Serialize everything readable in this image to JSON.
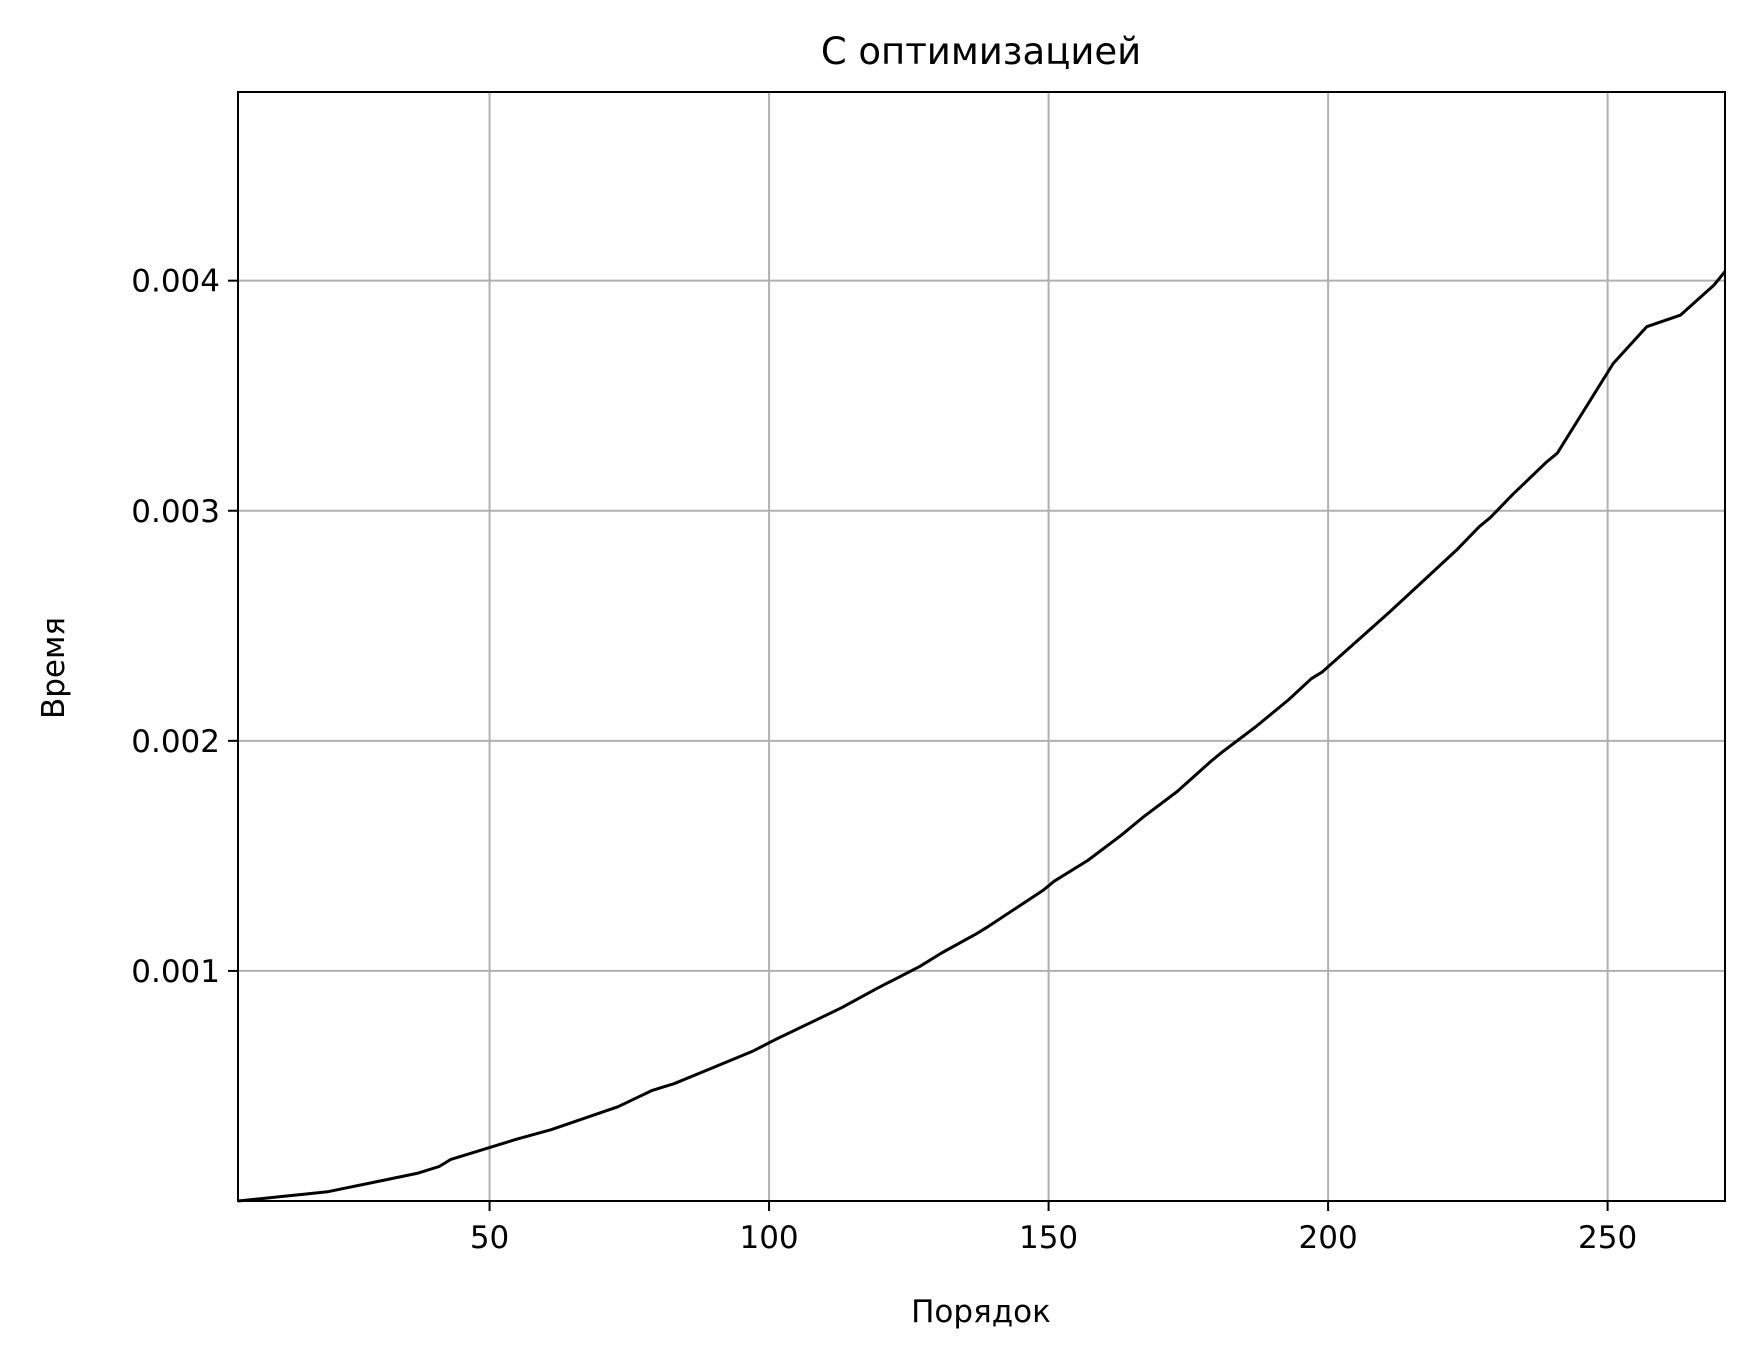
{
  "chart_data": {
    "type": "line",
    "title": "С оптимизацией",
    "xlabel": "Порядок",
    "ylabel": "Время",
    "xlim": [
      5,
      271
    ],
    "ylim": [
      0.0,
      0.00482
    ],
    "xticks": [
      50,
      100,
      150,
      200,
      250
    ],
    "xtick_labels": [
      "50",
      "100",
      "150",
      "200",
      "250"
    ],
    "yticks": [
      0.001,
      0.002,
      0.003,
      0.004
    ],
    "ytick_labels": [
      "0.001",
      "0.002",
      "0.003",
      "0.004"
    ],
    "grid": true,
    "line_color": "#000000",
    "grid_color": "#b0b0b0",
    "series": [
      {
        "x": [
          5,
          9,
          13,
          17,
          21,
          25,
          29,
          33,
          37,
          41,
          43,
          47,
          51,
          55,
          61,
          67,
          73,
          79,
          83,
          89,
          97,
          101,
          107,
          113,
          119,
          127,
          131,
          137,
          139,
          149,
          151,
          157,
          163,
          167,
          173,
          179,
          181,
          187,
          193,
          197,
          199,
          211,
          223,
          227,
          229,
          233,
          239,
          241,
          251,
          257,
          263,
          269,
          271
        ],
        "y": [
          0.0,
          1e-05,
          2e-05,
          3e-05,
          4e-05,
          6e-05,
          8e-05,
          0.0001,
          0.00012,
          0.00015,
          0.00018,
          0.00021,
          0.00024,
          0.00027,
          0.00031,
          0.00036,
          0.00041,
          0.00048,
          0.00051,
          0.00057,
          0.00065,
          0.0007,
          0.00077,
          0.00084,
          0.00092,
          0.00102,
          0.00108,
          0.00116,
          0.00119,
          0.00135,
          0.00139,
          0.00148,
          0.00159,
          0.00167,
          0.00178,
          0.00191,
          0.00195,
          0.00206,
          0.00218,
          0.00227,
          0.0023,
          0.00256,
          0.00283,
          0.00293,
          0.00297,
          0.00307,
          0.00321,
          0.00325,
          0.00364,
          0.0038,
          0.00385,
          0.00398,
          0.00404
        ]
      }
    ]
  }
}
